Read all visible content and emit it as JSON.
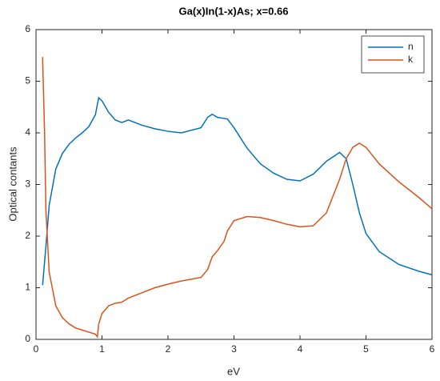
{
  "chart_data": {
    "type": "line",
    "title": "Ga(x)In(1-x)As; x=0.66",
    "x_label": "eV",
    "y_label": "Optical contants",
    "x": [
      0.1,
      0.13,
      0.15,
      0.2,
      0.3,
      0.4,
      0.5,
      0.6,
      0.7,
      0.8,
      0.9,
      0.93,
      0.95,
      1.0,
      1.1,
      1.2,
      1.3,
      1.4,
      1.5,
      1.6,
      1.8,
      2.0,
      2.2,
      2.5,
      2.6,
      2.67,
      2.75,
      2.85,
      2.9,
      3.0,
      3.2,
      3.4,
      3.6,
      3.8,
      4.0,
      4.2,
      4.4,
      4.6,
      4.7,
      4.8,
      4.9,
      5.0,
      5.2,
      5.5,
      5.8,
      6.0
    ],
    "series": [
      {
        "name": "n",
        "color": "#0072bd",
        "values": [
          1.05,
          1.5,
          1.8,
          2.6,
          3.3,
          3.6,
          3.78,
          3.9,
          4.0,
          4.12,
          4.35,
          4.55,
          4.68,
          4.62,
          4.4,
          4.25,
          4.2,
          4.25,
          4.2,
          4.15,
          4.08,
          4.03,
          4.0,
          4.1,
          4.3,
          4.36,
          4.3,
          4.28,
          4.27,
          4.1,
          3.7,
          3.4,
          3.22,
          3.1,
          3.07,
          3.2,
          3.45,
          3.62,
          3.5,
          3.0,
          2.45,
          2.05,
          1.7,
          1.45,
          1.32,
          1.25
        ]
      },
      {
        "name": "k",
        "color": "#d95319",
        "values": [
          5.47,
          4.0,
          2.5,
          1.3,
          0.65,
          0.42,
          0.3,
          0.22,
          0.18,
          0.14,
          0.1,
          0.05,
          0.3,
          0.5,
          0.65,
          0.7,
          0.72,
          0.8,
          0.85,
          0.9,
          1.0,
          1.07,
          1.13,
          1.2,
          1.35,
          1.6,
          1.72,
          1.9,
          2.1,
          2.3,
          2.38,
          2.36,
          2.3,
          2.23,
          2.18,
          2.2,
          2.45,
          3.1,
          3.5,
          3.72,
          3.8,
          3.72,
          3.4,
          3.05,
          2.75,
          2.53
        ]
      }
    ],
    "xlim": [
      0,
      6
    ],
    "ylim": [
      0,
      6
    ],
    "xticks": [
      0,
      1,
      2,
      3,
      4,
      5,
      6
    ],
    "yticks": [
      0,
      1,
      2,
      3,
      4,
      5,
      6
    ],
    "grid": false,
    "legend_position": "northeast"
  }
}
